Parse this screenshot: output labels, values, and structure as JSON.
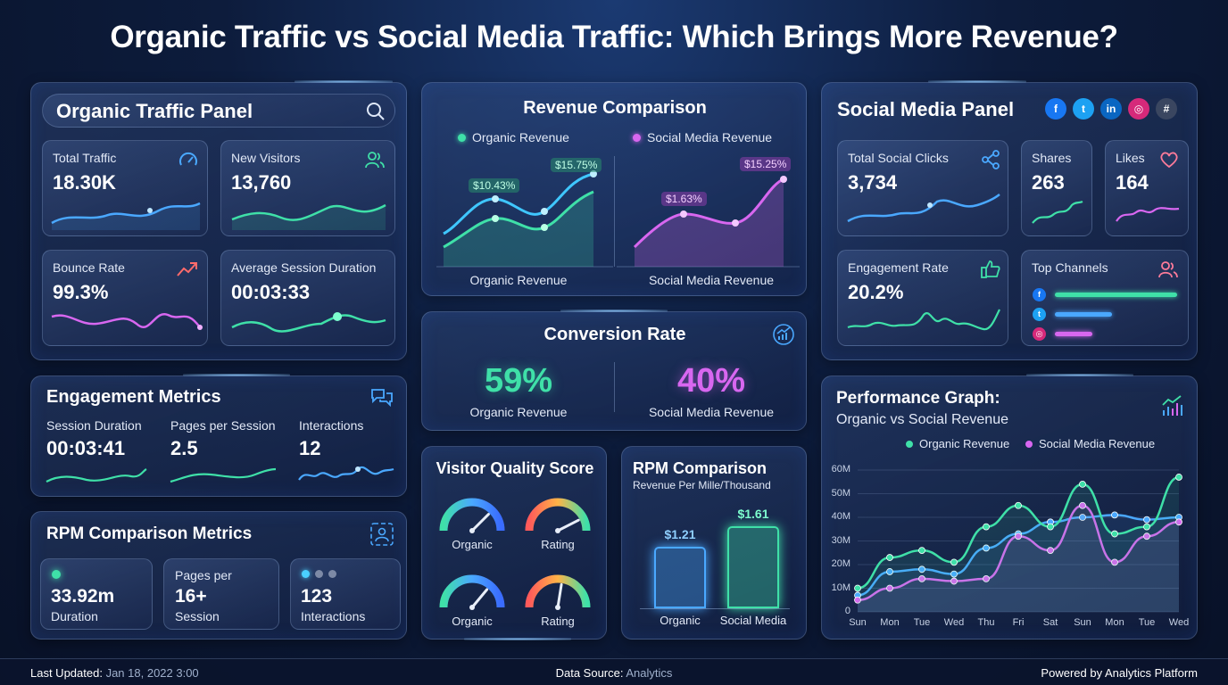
{
  "title": "Organic Traffic vs Social Media Traffic: Which Brings More Revenue?",
  "colors": {
    "organic": "#3fe0a8",
    "social": "#d867f0",
    "blue": "#4aa8ff",
    "gold": "#e5b441"
  },
  "organic_panel": {
    "title": "Organic Traffic Panel",
    "search_icon": "search-icon",
    "total_traffic": {
      "label": "Total Traffic",
      "value": "18.30K",
      "icon": "speedometer-icon"
    },
    "new_visitors": {
      "label": "New Visitors",
      "value": "13,760",
      "icon": "users-icon"
    },
    "bounce_rate": {
      "label": "Bounce Rate",
      "value": "99.3%",
      "icon": "trend-up-icon"
    },
    "avg_session": {
      "label": "Average Session Duration",
      "value": "00:03:33"
    }
  },
  "engagement": {
    "title": "Engagement Metrics",
    "icon": "chat-icon",
    "session_duration": {
      "label": "Session Duration",
      "value": "00:03:41"
    },
    "pages_per_session": {
      "label": "Pages per Session",
      "value": "2.5"
    },
    "interactions": {
      "label": "Interactions",
      "value": "12"
    }
  },
  "rpm_metrics": {
    "title": "RPM Comparison Metrics",
    "icon": "users-chart-icon",
    "duration": {
      "value": "33.92m",
      "label": "Duration"
    },
    "pages": {
      "top": "Pages per",
      "value": "16+",
      "label": "Session"
    },
    "interactions": {
      "value": "123",
      "label": "Interactions"
    }
  },
  "revenue_comparison": {
    "title": "Revenue Comparison",
    "legend_organic": "Organic Revenue",
    "legend_social": "Social Media Revenue",
    "organic_tag_low": "$10.43%",
    "organic_tag_high": "$15.75%",
    "social_tag_low": "$1.63%",
    "social_tag_high": "$15.25%",
    "caption_organic": "Organic Revenue",
    "caption_social": "Social Media Revenue"
  },
  "conversion": {
    "title": "Conversion Rate",
    "organic_value": "59%",
    "organic_label": "Organic Revenue",
    "social_value": "40%",
    "social_label": "Social Media Revenue"
  },
  "visitor_quality": {
    "title": "Visitor Quality Score",
    "gauges": [
      {
        "label": "Organic",
        "level": 0.75
      },
      {
        "label": "Rating",
        "level": 0.85
      },
      {
        "label": "Organic",
        "level": 0.72
      },
      {
        "label": "Rating",
        "level": 0.55
      }
    ]
  },
  "rpm_comparison": {
    "title": "RPM Comparison",
    "subtitle": "Revenue Per Mille/Thousand",
    "bars": [
      {
        "label": "Organic",
        "value": 1.21,
        "display": "$1.21"
      },
      {
        "label": "Social Media",
        "value": 1.61,
        "display": "$1.61"
      }
    ]
  },
  "social_panel": {
    "title": "Social Media Panel",
    "networks": [
      {
        "name": "facebook-icon",
        "glyph": "f",
        "color": "#1877f2"
      },
      {
        "name": "twitter-icon",
        "glyph": "t",
        "color": "#1da1f2"
      },
      {
        "name": "linkedin-icon",
        "glyph": "in",
        "color": "#0a66c2"
      },
      {
        "name": "instagram-icon",
        "glyph": "◎",
        "color": "#d6297a"
      },
      {
        "name": "slack-icon",
        "glyph": "#",
        "color": "#3a4660"
      }
    ],
    "total_clicks": {
      "label": "Total Social Clicks",
      "value": "3,734",
      "icon": "share-icon"
    },
    "shares": {
      "label": "Shares",
      "value": "263"
    },
    "likes": {
      "label": "Likes",
      "value": "164",
      "icon": "heart-icon"
    },
    "engagement_rate": {
      "label": "Engagement Rate",
      "value": "20.2%",
      "icon": "thumbs-up-icon"
    },
    "top_channels": {
      "label": "Top Channels",
      "channels": [
        {
          "name": "facebook-icon",
          "glyph": "f",
          "color": "#1877f2",
          "share": 1.0,
          "bar": "#3fe0a8"
        },
        {
          "name": "twitter-icon",
          "glyph": "t",
          "color": "#1da1f2",
          "share": 0.47,
          "bar": "#4aa8ff"
        },
        {
          "name": "instagram-icon",
          "glyph": "◎",
          "color": "#d6297a",
          "share": 0.31,
          "bar": "#d867f0"
        }
      ]
    }
  },
  "performance": {
    "title": "Performance Graph:",
    "subtitle": "Organic vs Social Revenue",
    "legend_organic": "Organic Revenue",
    "legend_social": "Social Media Revenue"
  },
  "chart_data": {
    "type": "line",
    "categories": [
      "Sun",
      "Mon",
      "Tue",
      "Wed",
      "Thu",
      "Fri",
      "Sat",
      "Sun",
      "Mon",
      "Tue",
      "Wed"
    ],
    "y_ticks": [
      "0",
      "10M",
      "20M",
      "30M",
      "40M",
      "50M",
      "60M"
    ],
    "ylim": [
      0,
      60
    ],
    "grid": true,
    "legend": "top",
    "series": [
      {
        "name": "Organic Revenue",
        "color": "#3fe0a8",
        "values": [
          10,
          23,
          26,
          21,
          36,
          45,
          36,
          54,
          33,
          36,
          57
        ]
      },
      {
        "name": "Social Media Revenue",
        "color": "#d867f0",
        "values": [
          5,
          10,
          14,
          13,
          14,
          32,
          26,
          45,
          21,
          32,
          38
        ]
      },
      {
        "name": "",
        "color": "#4aa8ff",
        "values": [
          7,
          17,
          18,
          16,
          27,
          33,
          38,
          40,
          41,
          39,
          40
        ]
      }
    ]
  },
  "footer": {
    "updated_label": "Last Updated:",
    "updated_value": "Jan 18, 2022 3:00",
    "source_label": "Data Source:",
    "source_value": "Analytics",
    "powered": "Powered by Analytics Platform"
  }
}
